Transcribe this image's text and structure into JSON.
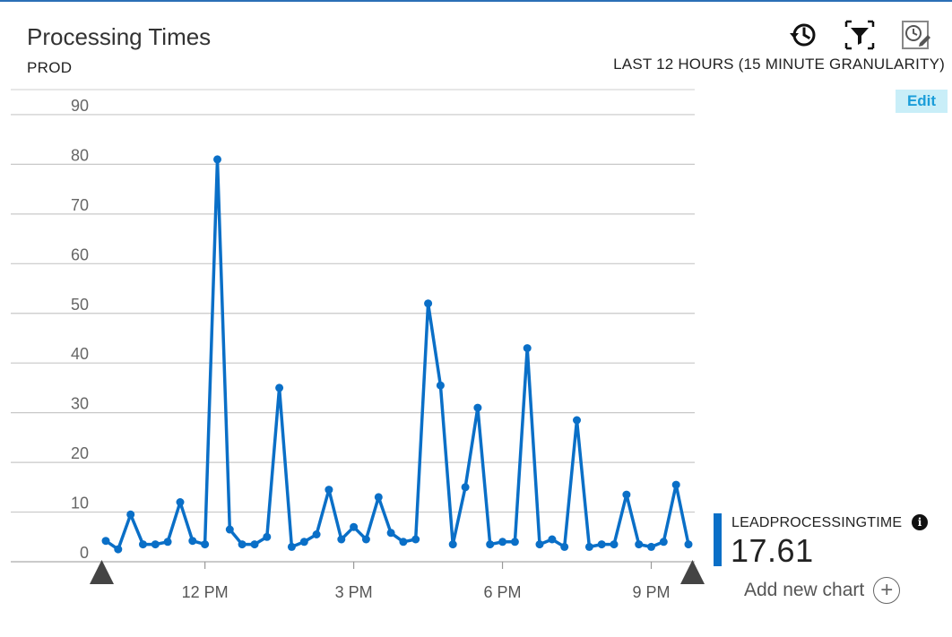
{
  "header": {
    "title": "Processing Times",
    "subtitle": "PROD",
    "time_range": "LAST 12 HOURS (15 MINUTE GRANULARITY)",
    "edit_label": "Edit",
    "tools": [
      "history-icon",
      "filter-icon",
      "time-edit-icon"
    ]
  },
  "legend": {
    "metric_name": "LEADPROCESSINGTIME",
    "value": "17.61",
    "color": "#0a6fc7",
    "info_glyph": "i"
  },
  "add_chart": {
    "label": "Add new chart",
    "icon": "+"
  },
  "chart_data": {
    "type": "line",
    "title": "",
    "xlabel": "",
    "ylabel": "",
    "ylim": [
      0,
      92
    ],
    "yticks": [
      0,
      10,
      20,
      30,
      40,
      50,
      60,
      70,
      80,
      90
    ],
    "xlim": [
      0,
      47
    ],
    "xticks": [
      {
        "x": 8,
        "label": "12 PM"
      },
      {
        "x": 20,
        "label": "3 PM"
      },
      {
        "x": 32,
        "label": "6 PM"
      },
      {
        "x": 44,
        "label": "9 PM"
      }
    ],
    "grid": true,
    "color": "#0a6fc7",
    "series": [
      {
        "values": [
          4.2,
          2.5,
          9.5,
          3.5,
          3.5,
          4,
          12,
          4.2,
          3.5,
          81,
          6.5,
          3.5,
          3.5,
          5,
          35,
          3,
          4,
          5.5,
          14.5,
          4.5,
          7,
          4.5,
          13,
          5.8,
          4,
          4.5,
          52,
          35.5,
          3.5,
          15,
          31,
          3.5,
          4,
          4,
          43,
          3.5,
          4.5,
          3,
          28.5,
          3,
          3.5,
          3.5,
          13.5,
          3.5,
          3,
          4,
          15.5,
          3.5
        ]
      }
    ]
  }
}
